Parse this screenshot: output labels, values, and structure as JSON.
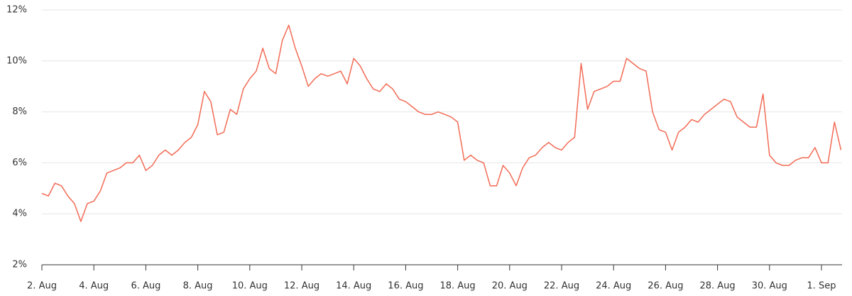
{
  "chart_data": {
    "type": "line",
    "categories": [
      "2. Aug",
      null,
      null,
      null,
      null,
      null,
      null,
      null,
      "4. Aug",
      null,
      null,
      null,
      null,
      null,
      null,
      null,
      "6. Aug",
      null,
      null,
      null,
      null,
      null,
      null,
      null,
      "8. Aug",
      null,
      null,
      null,
      null,
      null,
      null,
      null,
      "10. Aug",
      null,
      null,
      null,
      null,
      null,
      null,
      null,
      "12. Aug",
      null,
      null,
      null,
      null,
      null,
      null,
      null,
      "14. Aug",
      null,
      null,
      null,
      null,
      null,
      null,
      null,
      "16. Aug",
      null,
      null,
      null,
      null,
      null,
      null,
      null,
      "18. Aug",
      null,
      null,
      null,
      null,
      null,
      null,
      null,
      "20. Aug",
      null,
      null,
      null,
      null,
      null,
      null,
      null,
      "22. Aug",
      null,
      null,
      null,
      null,
      null,
      null,
      null,
      "24. Aug",
      null,
      null,
      null,
      null,
      null,
      null,
      null,
      "26. Aug",
      null,
      null,
      null,
      null,
      null,
      null,
      null,
      "28. Aug",
      null,
      null,
      null,
      null,
      null,
      null,
      null,
      "30. Aug",
      null,
      null,
      null,
      null,
      null,
      null,
      null,
      "1. Sep",
      null,
      null,
      null
    ],
    "values": [
      4.8,
      4.7,
      5.2,
      5.1,
      4.7,
      4.4,
      3.7,
      4.4,
      4.5,
      4.9,
      5.6,
      5.7,
      5.8,
      6.0,
      6.0,
      6.3,
      5.7,
      5.9,
      6.3,
      6.5,
      6.3,
      6.5,
      6.8,
      7.0,
      7.5,
      8.8,
      8.4,
      7.1,
      7.2,
      8.1,
      7.9,
      8.9,
      9.3,
      9.6,
      10.5,
      9.7,
      9.5,
      10.8,
      11.4,
      10.5,
      9.8,
      9.0,
      9.3,
      9.5,
      9.4,
      9.5,
      9.6,
      9.1,
      10.1,
      9.8,
      9.3,
      8.9,
      8.8,
      9.1,
      8.9,
      8.5,
      8.4,
      8.2,
      8.0,
      7.9,
      7.9,
      8.0,
      7.9,
      7.8,
      7.6,
      6.1,
      6.3,
      6.1,
      6.0,
      5.1,
      5.1,
      5.9,
      5.6,
      5.1,
      5.8,
      6.2,
      6.3,
      6.6,
      6.8,
      6.6,
      6.5,
      6.8,
      7.0,
      9.9,
      8.1,
      8.8,
      8.9,
      9.0,
      9.2,
      9.2,
      10.1,
      9.9,
      9.7,
      9.6,
      8.0,
      7.3,
      7.2,
      6.5,
      7.2,
      7.4,
      7.7,
      7.6,
      7.9,
      8.1,
      8.3,
      8.5,
      8.4,
      7.8,
      7.6,
      7.4,
      7.4,
      8.7,
      6.3,
      6.0,
      5.9,
      5.9,
      6.1,
      6.2,
      6.2,
      6.6,
      6.0,
      6.0,
      7.6,
      6.5
    ],
    "color": "#f26b55",
    "ylim": [
      2,
      12
    ],
    "yticks": [
      {
        "value": 2,
        "label": "2%"
      },
      {
        "value": 4,
        "label": "4%"
      },
      {
        "value": 6,
        "label": "6%"
      },
      {
        "value": 8,
        "label": "8%"
      },
      {
        "value": 10,
        "label": "10%"
      },
      {
        "value": 12,
        "label": "12%"
      }
    ],
    "grid": true
  }
}
